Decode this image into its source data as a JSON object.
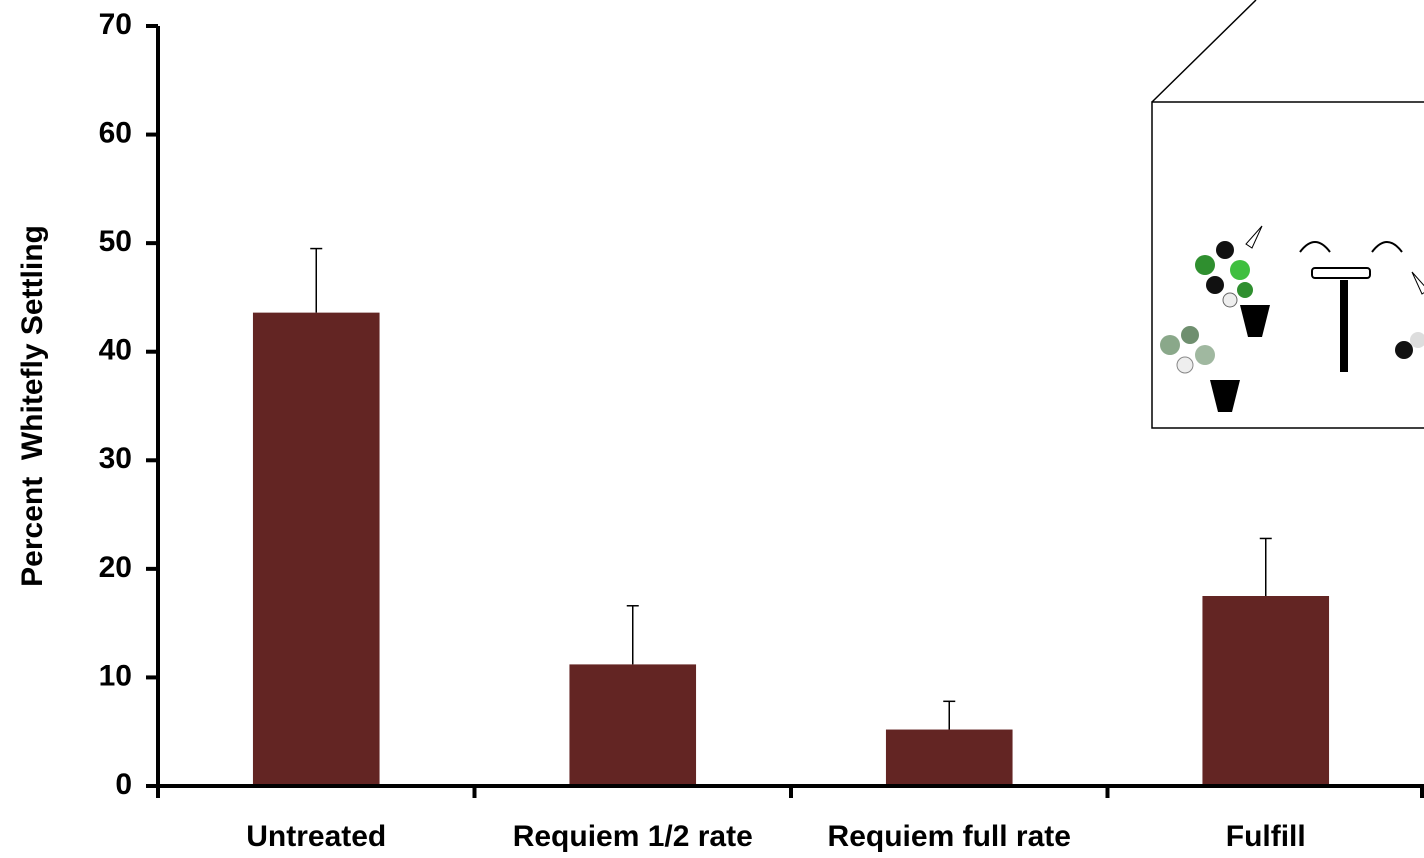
{
  "chart_data": {
    "type": "bar",
    "ylabel": "Percent  Whitefly Settling",
    "categories": [
      "Untreated",
      "Requiem 1/2 rate",
      "Requiem full rate",
      "Fulfill"
    ],
    "values": [
      43.6,
      11.2,
      5.2,
      17.5
    ],
    "errors": [
      5.9,
      5.4,
      2.6,
      5.3
    ],
    "color": "#632523",
    "ylim": [
      0,
      70
    ],
    "yticks": [
      0,
      10,
      20,
      30,
      40,
      50,
      60,
      70
    ],
    "grid": false
  }
}
